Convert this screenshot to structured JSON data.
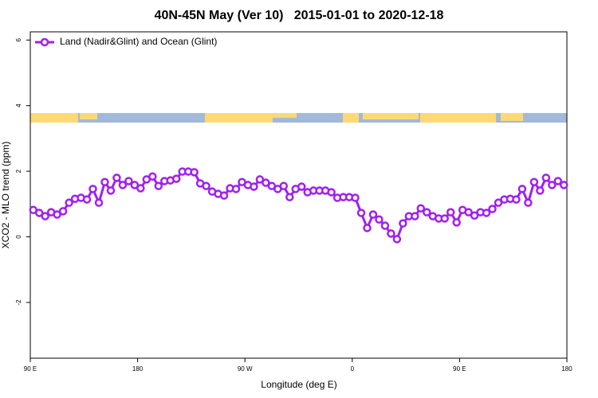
{
  "chart_data": {
    "type": "line",
    "title": "40N-45N May (Ver 10)   2015-01-01 to 2020-12-18",
    "x_label": "Longitude (deg E)",
    "y_label": "XCO2 - MLO trend (ppm)",
    "xlim": [
      90,
      540
    ],
    "ylim": [
      -3.7,
      6.25
    ],
    "xticks": [
      {
        "value": 90,
        "label": "90 E"
      },
      180,
      {
        "value": 270,
        "label": "90 W"
      },
      {
        "value": 360,
        "label": "0"
      },
      {
        "value": 450,
        "label": "90 E"
      },
      {
        "value": 540,
        "label": "180"
      }
    ],
    "yticks": [
      6,
      4,
      2,
      0,
      -2
    ],
    "legend": "top-left",
    "x": [
      92.5,
      97.5,
      102.5,
      107.5,
      112.5,
      117.5,
      122.5,
      127.5,
      132.5,
      137.5,
      142.5,
      147.5,
      152.5,
      157.5,
      162.5,
      167.5,
      172.5,
      177.5,
      182.5,
      187.5,
      192.5,
      197.5,
      202.5,
      207.5,
      212.5,
      217.5,
      222.5,
      227.5,
      232.5,
      237.5,
      242.5,
      247.5,
      252.5,
      257.5,
      262.5,
      267.5,
      272.5,
      277.5,
      282.5,
      287.5,
      292.5,
      297.5,
      302.5,
      307.5,
      312.5,
      317.5,
      322.5,
      327.5,
      332.5,
      337.5,
      342.5,
      347.5,
      352.5,
      357.5,
      362.5,
      367.5,
      372.5,
      377.5,
      382.5,
      387.5,
      392.5,
      397.5,
      402.5,
      407.5,
      412.5,
      417.5,
      422.5,
      427.5,
      432.5,
      437.5,
      442.5,
      447.5,
      452.5,
      457.5,
      462.5,
      467.5,
      472.5,
      477.5,
      482.5,
      487.5,
      492.5,
      497.5,
      502.5,
      507.5,
      512.5,
      517.5,
      522.5,
      527.5,
      532.5,
      537.5
    ],
    "series": [
      {
        "name": "Land (Nadir&Glint) and Ocean (Glint)",
        "color": "#a020f0",
        "values": [
          0.82,
          0.73,
          0.63,
          0.75,
          0.68,
          0.78,
          1.04,
          1.16,
          1.19,
          1.14,
          1.46,
          1.04,
          1.67,
          1.41,
          1.8,
          1.58,
          1.7,
          1.58,
          1.48,
          1.75,
          1.84,
          1.55,
          1.7,
          1.72,
          1.77,
          1.99,
          1.99,
          1.97,
          1.63,
          1.55,
          1.38,
          1.31,
          1.26,
          1.48,
          1.46,
          1.67,
          1.58,
          1.53,
          1.75,
          1.65,
          1.55,
          1.46,
          1.55,
          1.21,
          1.46,
          1.53,
          1.36,
          1.41,
          1.41,
          1.41,
          1.36,
          1.19,
          1.21,
          1.21,
          1.19,
          0.73,
          0.27,
          0.68,
          0.53,
          0.34,
          0.1,
          -0.07,
          0.41,
          0.63,
          0.63,
          0.87,
          0.75,
          0.63,
          0.56,
          0.56,
          0.75,
          0.44,
          0.82,
          0.75,
          0.65,
          0.75,
          0.73,
          0.85,
          1.04,
          1.14,
          1.16,
          1.14,
          1.46,
          1.04,
          1.67,
          1.41,
          1.8,
          1.58,
          1.7,
          1.58
        ]
      }
    ]
  }
}
